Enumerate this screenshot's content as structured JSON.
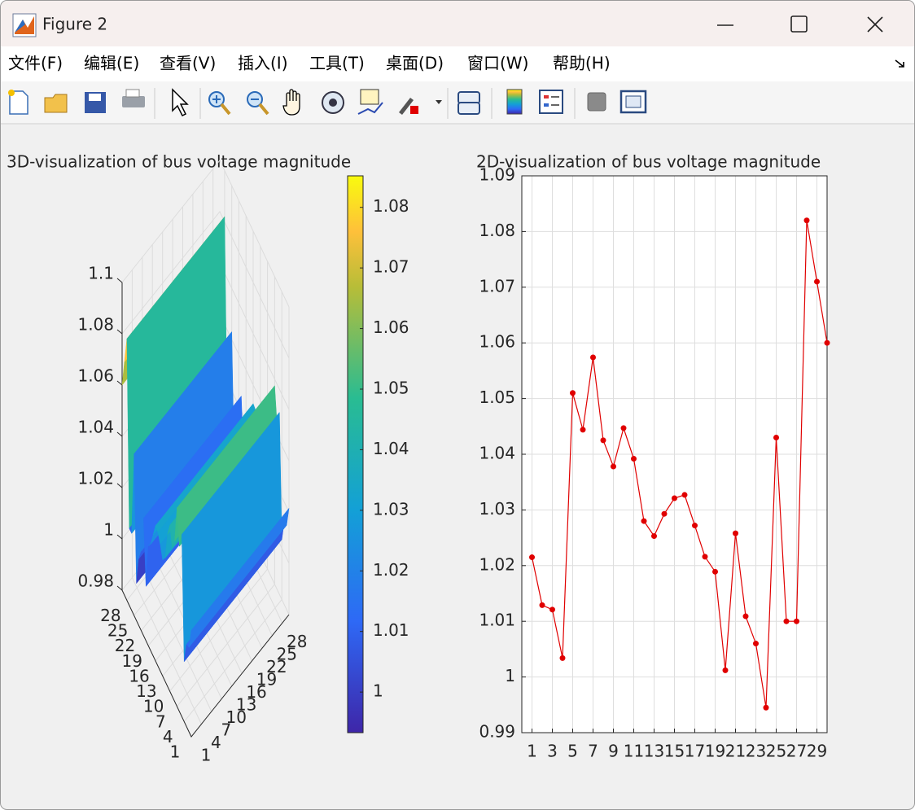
{
  "window": {
    "title": "Figure 2"
  },
  "menu": [
    "文件(F)",
    "编辑(E)",
    "查看(V)",
    "插入(I)",
    "工具(T)",
    "桌面(D)",
    "窗口(W)",
    "帮助(H)"
  ],
  "chart_data": [
    {
      "type": "surface",
      "title": "3D-visualization of bus voltage magnitude",
      "values": [
        1.0215,
        1.0129,
        1.0121,
        1.0034,
        1.051,
        1.0444,
        1.0574,
        1.0425,
        1.0378,
        1.0447,
        1.0392,
        1.028,
        1.0253,
        1.0293,
        1.0321,
        1.0327,
        1.0272,
        1.0216,
        1.0189,
        1.0012,
        1.0258,
        1.0109,
        1.006,
        0.9945,
        1.043,
        1.01,
        1.01,
        1.082,
        1.071,
        1.06
      ],
      "xlim": [
        1,
        30
      ],
      "xticks": [
        1,
        4,
        7,
        10,
        13,
        16,
        19,
        22,
        25,
        28
      ],
      "ylim": [
        1,
        30
      ],
      "yticks": [
        1,
        4,
        7,
        10,
        13,
        16,
        19,
        22,
        25,
        28
      ],
      "zlim": [
        0.98,
        1.1
      ],
      "zticks": [
        0.98,
        1,
        1.02,
        1.04,
        1.06,
        1.08,
        1.1
      ],
      "colormap": "parula",
      "clim": [
        0.9933,
        1.0852
      ],
      "colorbar_ticks": [
        1,
        1.01,
        1.02,
        1.03,
        1.04,
        1.05,
        1.06,
        1.07,
        1.08
      ],
      "grid": true
    },
    {
      "type": "line",
      "title": "2D-visualization of bus voltage magnitude",
      "x": [
        1,
        2,
        3,
        4,
        5,
        6,
        7,
        8,
        9,
        10,
        11,
        12,
        13,
        14,
        15,
        16,
        17,
        18,
        19,
        20,
        21,
        22,
        23,
        24,
        25,
        26,
        27,
        28,
        29,
        30
      ],
      "series": [
        {
          "color": "#e00000",
          "values": [
            1.0215,
            1.0129,
            1.0121,
            1.0034,
            1.051,
            1.0444,
            1.0574,
            1.0425,
            1.0378,
            1.0447,
            1.0392,
            1.028,
            1.0253,
            1.0293,
            1.0321,
            1.0327,
            1.0272,
            1.0216,
            1.0189,
            1.0012,
            1.0258,
            1.0109,
            1.006,
            0.9945,
            1.043,
            1.01,
            1.01,
            1.082,
            1.071,
            1.06
          ]
        }
      ],
      "xlim": [
        0,
        30
      ],
      "xticks": [
        1,
        3,
        5,
        7,
        9,
        11,
        13,
        15,
        17,
        19,
        21,
        23,
        25,
        27,
        29
      ],
      "ylim": [
        0.99,
        1.09
      ],
      "yticks": [
        0.99,
        1,
        1.01,
        1.02,
        1.03,
        1.04,
        1.05,
        1.06,
        1.07,
        1.08,
        1.09
      ],
      "grid": true
    }
  ]
}
